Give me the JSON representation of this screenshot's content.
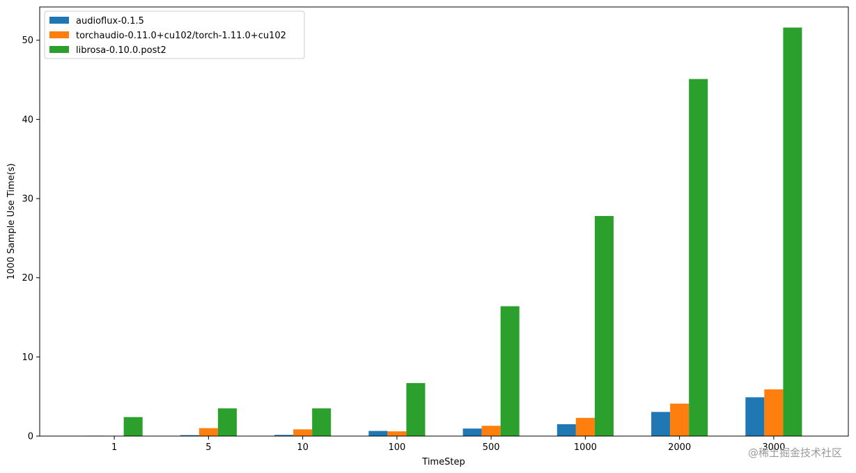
{
  "chart_data": {
    "type": "bar",
    "title": "",
    "xlabel": "TimeStep",
    "ylabel": "1000 Sample Use Time(s)",
    "categories": [
      "1",
      "5",
      "10",
      "100",
      "500",
      "1000",
      "2000",
      "3000"
    ],
    "series": [
      {
        "name": "audioflux-0.1.5",
        "color": "#1f77b4",
        "values": [
          0.05,
          0.12,
          0.15,
          0.65,
          0.95,
          1.5,
          3.05,
          4.9
        ]
      },
      {
        "name": "torchaudio-0.11.0+cu102/torch-1.11.0+cu102",
        "color": "#ff7f0e",
        "values": [
          0.04,
          1.0,
          0.85,
          0.6,
          1.3,
          2.3,
          4.1,
          5.9
        ]
      },
      {
        "name": "librosa-0.10.0.post2",
        "color": "#2ca02c",
        "values": [
          2.4,
          3.5,
          3.5,
          6.7,
          16.4,
          27.8,
          45.1,
          51.6
        ]
      }
    ],
    "ylim": [
      0,
      54.2
    ],
    "yticks": [
      0,
      10,
      20,
      30,
      40,
      50
    ],
    "grid": false,
    "legend_position": "top-left"
  },
  "watermark": "@稀土掘金技术社区"
}
